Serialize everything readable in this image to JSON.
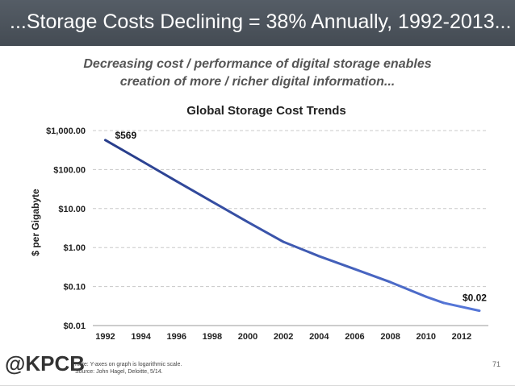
{
  "header": {
    "title": "...Storage Costs Declining = 38% Annually, 1992-2013..."
  },
  "subtitle": {
    "line1": "Decreasing cost / performance of digital storage enables",
    "line2": "creation of more / richer digital information..."
  },
  "chart_data": {
    "type": "line",
    "title": "Global Storage Cost Trends",
    "xlabel": "",
    "ylabel": "$ per Gigabyte",
    "yscale": "log",
    "ylim": [
      0.01,
      1000
    ],
    "xlim": [
      1991.3,
      2013.5
    ],
    "yticks": [
      {
        "value": 1000,
        "label": "$1,000.00"
      },
      {
        "value": 100,
        "label": "$100.00"
      },
      {
        "value": 10,
        "label": "$10.00"
      },
      {
        "value": 1,
        "label": "$1.00"
      },
      {
        "value": 0.1,
        "label": "$0.10"
      },
      {
        "value": 0.01,
        "label": "$0.01"
      }
    ],
    "xticks": [
      "1992",
      "1994",
      "1996",
      "1998",
      "2000",
      "2002",
      "2004",
      "2006",
      "2008",
      "2010",
      "2012"
    ],
    "grid": "horizontal dashed",
    "series": [
      {
        "color": "#3b5bc8",
        "points": [
          {
            "x": 1992,
            "y": 569
          },
          {
            "x": 1994,
            "y": 170
          },
          {
            "x": 1996,
            "y": 50
          },
          {
            "x": 1998,
            "y": 15
          },
          {
            "x": 2000,
            "y": 4.5
          },
          {
            "x": 2002,
            "y": 1.4
          },
          {
            "x": 2004,
            "y": 0.6
          },
          {
            "x": 2006,
            "y": 0.28
          },
          {
            "x": 2008,
            "y": 0.13
          },
          {
            "x": 2010,
            "y": 0.055
          },
          {
            "x": 2011,
            "y": 0.038
          },
          {
            "x": 2013,
            "y": 0.024
          }
        ]
      }
    ],
    "annotations": [
      {
        "text": "$569",
        "x": 1992,
        "y": 569
      },
      {
        "text": "$0.02",
        "x": 2013,
        "y": 0.024
      }
    ]
  },
  "footer": {
    "logo": "@KPCB",
    "note_line1": "Note: Y-axes on graph is logarithmic scale.",
    "note_line2": "Source: John Hagel, Deloitte, 5/14.",
    "page_number": "71"
  }
}
